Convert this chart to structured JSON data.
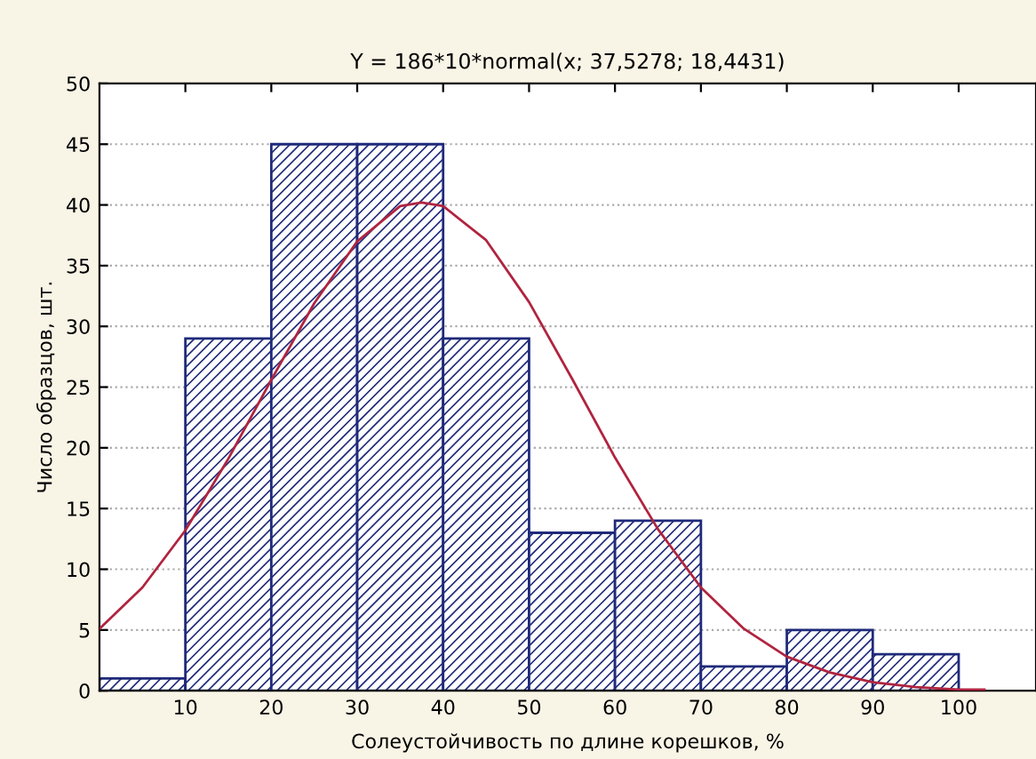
{
  "chart_data": {
    "type": "histogram",
    "title": "Y = 186*10*normal(x; 37,5278; 18,4431)",
    "xlabel": "Солеустойчивость по длине корешков, %",
    "ylabel": "Число образцов, шт.",
    "bins": [
      0,
      10,
      20,
      30,
      40,
      50,
      60,
      70,
      80,
      90,
      100
    ],
    "values": [
      1,
      29,
      45,
      45,
      29,
      13,
      14,
      2,
      5,
      3
    ],
    "color": "#1f2a7a",
    "series": [
      {
        "type": "line",
        "color": "#b0243f",
        "x": [
          0,
          5,
          10,
          15,
          20,
          25,
          30,
          35,
          37.5,
          40,
          45,
          50,
          55,
          60,
          65,
          70,
          75,
          80,
          85,
          90,
          95,
          100,
          103
        ],
        "values": [
          5.1,
          8.5,
          13.2,
          19.1,
          25.6,
          31.9,
          37.0,
          39.9,
          40.2,
          39.9,
          37.1,
          32.0,
          25.7,
          19.2,
          13.3,
          8.5,
          5.1,
          2.8,
          1.5,
          0.7,
          0.3,
          0.1,
          0.1
        ]
      }
    ],
    "xlim": [
      0,
      109
    ],
    "xticks": [
      10,
      20,
      30,
      40,
      50,
      60,
      70,
      80,
      90,
      100
    ],
    "ylim": [
      0,
      50
    ],
    "yticks": [
      0,
      5,
      10,
      15,
      20,
      25,
      30,
      35,
      40,
      45,
      50
    ],
    "grid": "y"
  }
}
